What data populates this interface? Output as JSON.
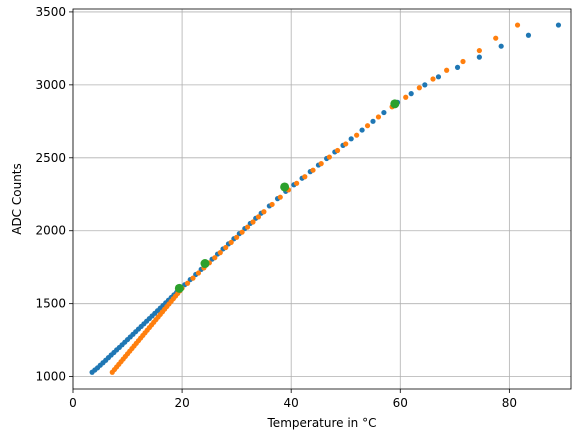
{
  "chart_data": {
    "type": "scatter",
    "title": "",
    "xlabel": "Temperature in °C",
    "ylabel": "ADC Counts",
    "xlim": [
      0,
      91.3
    ],
    "ylim": [
      915,
      3520
    ],
    "xticks": [
      0,
      20,
      40,
      60,
      80
    ],
    "yticks": [
      1000,
      1500,
      2000,
      2500,
      3000,
      3500
    ],
    "grid": true,
    "legend": "none",
    "series": [
      {
        "color": "#1f77b4",
        "marker_size": "small",
        "points": [
          [
            3.5,
            1030
          ],
          [
            4.0,
            1045
          ],
          [
            4.5,
            1060
          ],
          [
            5.0,
            1078
          ],
          [
            5.5,
            1095
          ],
          [
            6.0,
            1112
          ],
          [
            6.5,
            1130
          ],
          [
            7.0,
            1148
          ],
          [
            7.5,
            1165
          ],
          [
            8.0,
            1183
          ],
          [
            8.5,
            1200
          ],
          [
            9.0,
            1218
          ],
          [
            9.5,
            1236
          ],
          [
            10.0,
            1254
          ],
          [
            10.5,
            1272
          ],
          [
            11.0,
            1290
          ],
          [
            11.5,
            1308
          ],
          [
            12.0,
            1326
          ],
          [
            12.5,
            1344
          ],
          [
            13.0,
            1362
          ],
          [
            13.5,
            1380
          ],
          [
            14.0,
            1398
          ],
          [
            14.5,
            1416
          ],
          [
            15.0,
            1434
          ],
          [
            15.5,
            1452
          ],
          [
            16.0,
            1470
          ],
          [
            16.5,
            1488
          ],
          [
            17.0,
            1506
          ],
          [
            17.5,
            1524
          ],
          [
            18.0,
            1542
          ],
          [
            18.5,
            1560
          ],
          [
            19.0,
            1578
          ],
          [
            19.5,
            1596
          ],
          [
            20.5,
            1630
          ],
          [
            21.5,
            1665
          ],
          [
            22.5,
            1700
          ],
          [
            23.5,
            1735
          ],
          [
            24.5,
            1770
          ],
          [
            25.5,
            1805
          ],
          [
            26.5,
            1840
          ],
          [
            27.5,
            1875
          ],
          [
            28.5,
            1910
          ],
          [
            29.5,
            1945
          ],
          [
            30.5,
            1980
          ],
          [
            31.5,
            2015
          ],
          [
            32.5,
            2050
          ],
          [
            33.5,
            2085
          ],
          [
            34.5,
            2120
          ],
          [
            36.0,
            2170
          ],
          [
            37.5,
            2220
          ],
          [
            39.0,
            2270
          ],
          [
            40.5,
            2315
          ],
          [
            42.0,
            2360
          ],
          [
            43.5,
            2405
          ],
          [
            45.0,
            2450
          ],
          [
            46.5,
            2495
          ],
          [
            48.0,
            2540
          ],
          [
            49.5,
            2585
          ],
          [
            51.0,
            2630
          ],
          [
            53.0,
            2690
          ],
          [
            55.0,
            2750
          ],
          [
            57.0,
            2810
          ],
          [
            59.5,
            2880
          ],
          [
            62.0,
            2940
          ],
          [
            64.5,
            3000
          ],
          [
            67.0,
            3055
          ],
          [
            70.5,
            3120
          ],
          [
            74.5,
            3190
          ],
          [
            78.5,
            3265
          ],
          [
            83.5,
            3340
          ],
          [
            89.0,
            3410
          ]
        ]
      },
      {
        "color": "#ff7f0e",
        "marker_size": "small",
        "points": [
          [
            7.2,
            1030
          ],
          [
            7.6,
            1048
          ],
          [
            8.0,
            1066
          ],
          [
            8.4,
            1084
          ],
          [
            8.8,
            1102
          ],
          [
            9.2,
            1120
          ],
          [
            9.6,
            1138
          ],
          [
            10.0,
            1156
          ],
          [
            10.4,
            1174
          ],
          [
            10.8,
            1192
          ],
          [
            11.2,
            1210
          ],
          [
            11.6,
            1228
          ],
          [
            12.0,
            1246
          ],
          [
            12.4,
            1264
          ],
          [
            12.8,
            1282
          ],
          [
            13.2,
            1300
          ],
          [
            13.6,
            1318
          ],
          [
            14.0,
            1336
          ],
          [
            14.4,
            1354
          ],
          [
            14.8,
            1372
          ],
          [
            15.2,
            1390
          ],
          [
            15.6,
            1408
          ],
          [
            16.0,
            1426
          ],
          [
            16.4,
            1444
          ],
          [
            16.8,
            1462
          ],
          [
            17.2,
            1480
          ],
          [
            17.6,
            1498
          ],
          [
            18.0,
            1516
          ],
          [
            18.4,
            1534
          ],
          [
            18.8,
            1552
          ],
          [
            19.2,
            1570
          ],
          [
            19.6,
            1588
          ],
          [
            20.0,
            1606
          ],
          [
            21.0,
            1640
          ],
          [
            22.0,
            1675
          ],
          [
            23.0,
            1710
          ],
          [
            24.0,
            1745
          ],
          [
            25.0,
            1780
          ],
          [
            26.0,
            1815
          ],
          [
            27.0,
            1850
          ],
          [
            28.0,
            1885
          ],
          [
            29.0,
            1920
          ],
          [
            30.0,
            1955
          ],
          [
            31.0,
            1990
          ],
          [
            32.0,
            2025
          ],
          [
            33.0,
            2060
          ],
          [
            34.0,
            2095
          ],
          [
            35.0,
            2130
          ],
          [
            36.5,
            2180
          ],
          [
            38.0,
            2230
          ],
          [
            39.5,
            2280
          ],
          [
            41.0,
            2325
          ],
          [
            42.5,
            2370
          ],
          [
            44.0,
            2415
          ],
          [
            45.5,
            2460
          ],
          [
            47.0,
            2505
          ],
          [
            48.5,
            2550
          ],
          [
            50.0,
            2595
          ],
          [
            52.0,
            2655
          ],
          [
            54.0,
            2720
          ],
          [
            56.0,
            2780
          ],
          [
            58.5,
            2850
          ],
          [
            61.0,
            2915
          ],
          [
            63.5,
            2980
          ],
          [
            66.0,
            3040
          ],
          [
            68.5,
            3100
          ],
          [
            71.5,
            3160
          ],
          [
            74.5,
            3235
          ],
          [
            77.5,
            3320
          ],
          [
            81.5,
            3410
          ]
        ]
      },
      {
        "color": "#2ca02c",
        "marker_size": "large",
        "points": [
          [
            19.5,
            1605
          ],
          [
            24.2,
            1775
          ],
          [
            38.8,
            2300
          ],
          [
            59.0,
            2870
          ]
        ]
      }
    ]
  }
}
